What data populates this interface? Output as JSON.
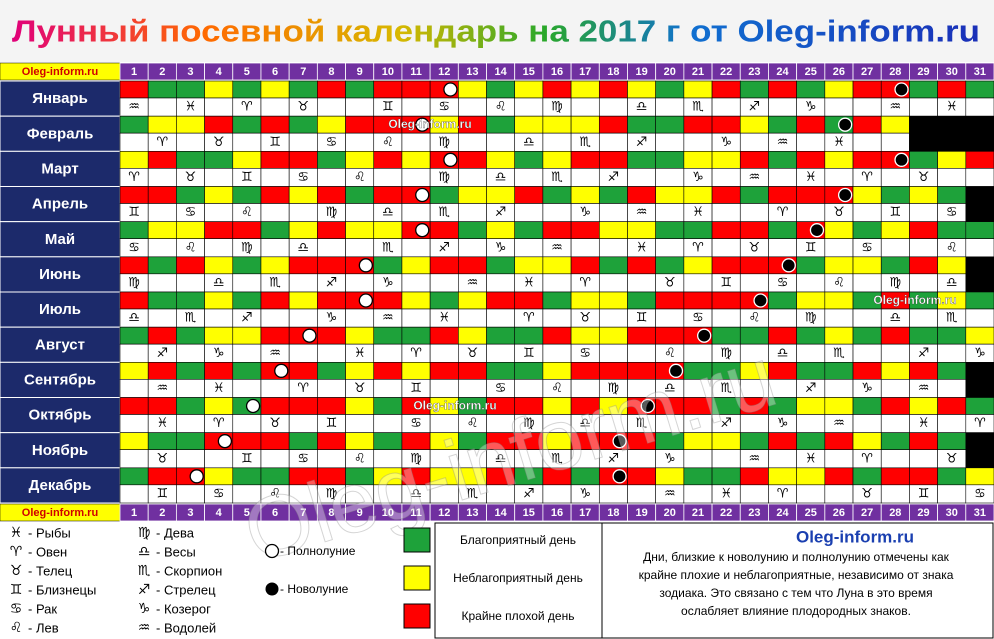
{
  "title": "Лунный посевной календарь на 2017 г от Oleg-inform.ru",
  "site_label": "Oleg-inform.ru",
  "days": [
    1,
    2,
    3,
    4,
    5,
    6,
    7,
    8,
    9,
    10,
    11,
    12,
    13,
    14,
    15,
    16,
    17,
    18,
    19,
    20,
    21,
    22,
    23,
    24,
    25,
    26,
    27,
    28,
    29,
    30,
    31
  ],
  "palette": {
    "G": "#1ea23a",
    "Y": "#ffff00",
    "R": "#ff0000",
    "K": "#000000"
  },
  "months": [
    {
      "name": "Январь",
      "colors": "RGGYGYGRGRRRYGYRYRYGYRGRGYRRGRG",
      "full_moon": 12,
      "new_moon": 28,
      "signs": [
        {
          "day": 1,
          "symbol": "♒"
        },
        {
          "day": 3,
          "symbol": "♓"
        },
        {
          "day": 5,
          "symbol": "♈"
        },
        {
          "day": 7,
          "symbol": "♉"
        },
        {
          "day": 10,
          "symbol": "♊"
        },
        {
          "day": 12,
          "symbol": "♋"
        },
        {
          "day": 14,
          "symbol": "♌"
        },
        {
          "day": 16,
          "symbol": "♍"
        },
        {
          "day": 19,
          "symbol": "♎"
        },
        {
          "day": 21,
          "symbol": "♏"
        },
        {
          "day": 23,
          "symbol": "♐"
        },
        {
          "day": 25,
          "symbol": "♑"
        },
        {
          "day": 28,
          "symbol": "♒"
        },
        {
          "day": 30,
          "symbol": "♓"
        }
      ]
    },
    {
      "name": "Февраль",
      "colors": "GYYRGRGYRRRYRGYYYRGGRRYGRGRYKKK",
      "full_moon": 11,
      "new_moon": 26,
      "signs": [
        {
          "day": 2,
          "symbol": "♈"
        },
        {
          "day": 4,
          "symbol": "♉"
        },
        {
          "day": 6,
          "symbol": "♊"
        },
        {
          "day": 8,
          "symbol": "♋"
        },
        {
          "day": 10,
          "symbol": "♌"
        },
        {
          "day": 12,
          "symbol": "♍"
        },
        {
          "day": 15,
          "symbol": "♎"
        },
        {
          "day": 17,
          "symbol": "♏"
        },
        {
          "day": 19,
          "symbol": "♐"
        },
        {
          "day": 22,
          "symbol": "♑"
        },
        {
          "day": 24,
          "symbol": "♒"
        },
        {
          "day": 26,
          "symbol": "♓"
        }
      ]
    },
    {
      "name": "Март",
      "colors": "YRGGYRRGYRYRRYGYRRGGYYRGRYRRGYR",
      "full_moon": 12,
      "new_moon": 28,
      "signs": [
        {
          "day": 1,
          "symbol": "♈"
        },
        {
          "day": 3,
          "symbol": "♉"
        },
        {
          "day": 5,
          "symbol": "♊"
        },
        {
          "day": 7,
          "symbol": "♋"
        },
        {
          "day": 9,
          "symbol": "♌"
        },
        {
          "day": 12,
          "symbol": "♍"
        },
        {
          "day": 14,
          "symbol": "♎"
        },
        {
          "day": 16,
          "symbol": "♏"
        },
        {
          "day": 18,
          "symbol": "♐"
        },
        {
          "day": 21,
          "symbol": "♑"
        },
        {
          "day": 23,
          "symbol": "♒"
        },
        {
          "day": 25,
          "symbol": "♓"
        },
        {
          "day": 27,
          "symbol": "♈"
        },
        {
          "day": 29,
          "symbol": "♉"
        }
      ]
    },
    {
      "name": "Апрель",
      "colors": "RRGYGRYRGRRGYYRGYGRYYRGRRRYGYGK",
      "full_moon": 11,
      "new_moon": 26,
      "signs": [
        {
          "day": 1,
          "symbol": "♊"
        },
        {
          "day": 3,
          "symbol": "♋"
        },
        {
          "day": 5,
          "symbol": "♌"
        },
        {
          "day": 8,
          "symbol": "♍"
        },
        {
          "day": 10,
          "symbol": "♎"
        },
        {
          "day": 12,
          "symbol": "♏"
        },
        {
          "day": 14,
          "symbol": "♐"
        },
        {
          "day": 17,
          "symbol": "♑"
        },
        {
          "day": 19,
          "symbol": "♒"
        },
        {
          "day": 21,
          "symbol": "♓"
        },
        {
          "day": 24,
          "symbol": "♈"
        },
        {
          "day": 26,
          "symbol": "♉"
        },
        {
          "day": 28,
          "symbol": "♊"
        },
        {
          "day": 30,
          "symbol": "♋"
        }
      ]
    },
    {
      "name": "Май",
      "colors": "GYYRRGYRYYRRGYGRRYYGGRRGRYGYRGG",
      "full_moon": 11,
      "new_moon": 25,
      "signs": [
        {
          "day": 1,
          "symbol": "♋"
        },
        {
          "day": 3,
          "symbol": "♌"
        },
        {
          "day": 5,
          "symbol": "♍"
        },
        {
          "day": 7,
          "symbol": "♎"
        },
        {
          "day": 10,
          "symbol": "♏"
        },
        {
          "day": 12,
          "symbol": "♐"
        },
        {
          "day": 14,
          "symbol": "♑"
        },
        {
          "day": 16,
          "symbol": "♒"
        },
        {
          "day": 19,
          "symbol": "♓"
        },
        {
          "day": 21,
          "symbol": "♈"
        },
        {
          "day": 23,
          "symbol": "♉"
        },
        {
          "day": 25,
          "symbol": "♊"
        },
        {
          "day": 27,
          "symbol": "♋"
        },
        {
          "day": 30,
          "symbol": "♌"
        }
      ]
    },
    {
      "name": "Июнь",
      "colors": "RGRYGYRRRGYRRGYYRGRGYRRRGYYGRYK",
      "full_moon": 9,
      "new_moon": 24,
      "signs": [
        {
          "day": 1,
          "symbol": "♍"
        },
        {
          "day": 4,
          "symbol": "♎"
        },
        {
          "day": 6,
          "symbol": "♏"
        },
        {
          "day": 8,
          "symbol": "♐"
        },
        {
          "day": 10,
          "symbol": "♑"
        },
        {
          "day": 13,
          "symbol": "♒"
        },
        {
          "day": 15,
          "symbol": "♓"
        },
        {
          "day": 17,
          "symbol": "♈"
        },
        {
          "day": 20,
          "symbol": "♉"
        },
        {
          "day": 22,
          "symbol": "♊"
        },
        {
          "day": 24,
          "symbol": "♋"
        },
        {
          "day": 26,
          "symbol": "♌"
        },
        {
          "day": 28,
          "symbol": "♍"
        },
        {
          "day": 30,
          "symbol": "♎"
        }
      ]
    },
    {
      "name": "Июль",
      "colors": "RGGYGRYRRRYGYRRGYYGRRRRGYYGRGYG",
      "full_moon": 9,
      "new_moon": 23,
      "signs": [
        {
          "day": 1,
          "symbol": "♎"
        },
        {
          "day": 3,
          "symbol": "♏"
        },
        {
          "day": 5,
          "symbol": "♐"
        },
        {
          "day": 8,
          "symbol": "♑"
        },
        {
          "day": 10,
          "symbol": "♒"
        },
        {
          "day": 12,
          "symbol": "♓"
        },
        {
          "day": 15,
          "symbol": "♈"
        },
        {
          "day": 17,
          "symbol": "♉"
        },
        {
          "day": 19,
          "symbol": "♊"
        },
        {
          "day": 21,
          "symbol": "♋"
        },
        {
          "day": 23,
          "symbol": "♌"
        },
        {
          "day": 25,
          "symbol": "♍"
        },
        {
          "day": 28,
          "symbol": "♎"
        },
        {
          "day": 30,
          "symbol": "♏"
        }
      ]
    },
    {
      "name": "Август",
      "colors": "GRGYYRRRYGGRYGGRYYRRRGGRGYGRGGY",
      "full_moon": 7,
      "new_moon": 21,
      "signs": [
        {
          "day": 2,
          "symbol": "♐"
        },
        {
          "day": 4,
          "symbol": "♑"
        },
        {
          "day": 6,
          "symbol": "♒"
        },
        {
          "day": 9,
          "symbol": "♓"
        },
        {
          "day": 11,
          "symbol": "♈"
        },
        {
          "day": 13,
          "symbol": "♉"
        },
        {
          "day": 15,
          "symbol": "♊"
        },
        {
          "day": 17,
          "symbol": "♋"
        },
        {
          "day": 20,
          "symbol": "♌"
        },
        {
          "day": 22,
          "symbol": "♍"
        },
        {
          "day": 24,
          "symbol": "♎"
        },
        {
          "day": 26,
          "symbol": "♏"
        },
        {
          "day": 29,
          "symbol": "♐"
        },
        {
          "day": 31,
          "symbol": "♑"
        }
      ]
    },
    {
      "name": "Сентябрь",
      "colors": "YRGRGRRGYRYRRGGYRRRRGGYRGGRYRGK",
      "full_moon": 6,
      "new_moon": 20,
      "signs": [
        {
          "day": 2,
          "symbol": "♒"
        },
        {
          "day": 4,
          "symbol": "♓"
        },
        {
          "day": 7,
          "symbol": "♈"
        },
        {
          "day": 9,
          "symbol": "♉"
        },
        {
          "day": 11,
          "symbol": "♊"
        },
        {
          "day": 14,
          "symbol": "♋"
        },
        {
          "day": 16,
          "symbol": "♌"
        },
        {
          "day": 18,
          "symbol": "♍"
        },
        {
          "day": 20,
          "symbol": "♎"
        },
        {
          "day": 22,
          "symbol": "♏"
        },
        {
          "day": 25,
          "symbol": "♐"
        },
        {
          "day": 27,
          "symbol": "♑"
        },
        {
          "day": 29,
          "symbol": "♒"
        }
      ]
    },
    {
      "name": "Октябрь",
      "colors": "RRGYGRRRYGRYGRRYRYRRRGRGYYGRYRG",
      "full_moon": 5,
      "new_moon": 19,
      "signs": [
        {
          "day": 2,
          "symbol": "♓"
        },
        {
          "day": 4,
          "symbol": "♈"
        },
        {
          "day": 6,
          "symbol": "♉"
        },
        {
          "day": 8,
          "symbol": "♊"
        },
        {
          "day": 11,
          "symbol": "♋"
        },
        {
          "day": 13,
          "symbol": "♌"
        },
        {
          "day": 15,
          "symbol": "♍"
        },
        {
          "day": 17,
          "symbol": "♎"
        },
        {
          "day": 19,
          "symbol": "♏"
        },
        {
          "day": 22,
          "symbol": "♐"
        },
        {
          "day": 24,
          "symbol": "♑"
        },
        {
          "day": 26,
          "symbol": "♒"
        },
        {
          "day": 29,
          "symbol": "♓"
        },
        {
          "day": 31,
          "symbol": "♈"
        }
      ]
    },
    {
      "name": "Ноябрь",
      "colors": "YGGRRRGRYGRYGRRYRRRGYYGRGRYGRGK",
      "full_moon": 4,
      "new_moon": 18,
      "signs": [
        {
          "day": 2,
          "symbol": "♉"
        },
        {
          "day": 5,
          "symbol": "♊"
        },
        {
          "day": 7,
          "symbol": "♋"
        },
        {
          "day": 9,
          "symbol": "♌"
        },
        {
          "day": 11,
          "symbol": "♍"
        },
        {
          "day": 14,
          "symbol": "♎"
        },
        {
          "day": 16,
          "symbol": "♏"
        },
        {
          "day": 18,
          "symbol": "♐"
        },
        {
          "day": 20,
          "symbol": "♑"
        },
        {
          "day": 23,
          "symbol": "♒"
        },
        {
          "day": 25,
          "symbol": "♓"
        },
        {
          "day": 27,
          "symbol": "♈"
        },
        {
          "day": 30,
          "symbol": "♉"
        }
      ]
    },
    {
      "name": "Декабрь",
      "colors": "GRRYGGRRGYRYYRGRGRRYGGRYYRGRRGY",
      "full_moon": 3,
      "new_moon": 18,
      "signs": [
        {
          "day": 2,
          "symbol": "♊"
        },
        {
          "day": 4,
          "symbol": "♋"
        },
        {
          "day": 6,
          "symbol": "♌"
        },
        {
          "day": 8,
          "symbol": "♍"
        },
        {
          "day": 11,
          "symbol": "♎"
        },
        {
          "day": 13,
          "symbol": "♏"
        },
        {
          "day": 15,
          "symbol": "♐"
        },
        {
          "day": 17,
          "symbol": "♑"
        },
        {
          "day": 20,
          "symbol": "♒"
        },
        {
          "day": 22,
          "symbol": "♓"
        },
        {
          "day": 24,
          "symbol": "♈"
        },
        {
          "day": 27,
          "symbol": "♉"
        },
        {
          "day": 29,
          "symbol": "♊"
        },
        {
          "day": 31,
          "symbol": "♋"
        }
      ]
    }
  ],
  "zodiac_legend": [
    {
      "symbol": "♓",
      "label": "- Рыбы"
    },
    {
      "symbol": "♈",
      "label": "- Овен"
    },
    {
      "symbol": "♉",
      "label": "- Телец"
    },
    {
      "symbol": "♊",
      "label": "- Близнецы"
    },
    {
      "symbol": "♋",
      "label": "- Рак"
    },
    {
      "symbol": "♌",
      "label": "- Лев"
    },
    {
      "symbol": "♍",
      "label": "- Дева"
    },
    {
      "symbol": "♎",
      "label": "- Весы"
    },
    {
      "symbol": "♏",
      "label": "- Скорпион"
    },
    {
      "symbol": "♐",
      "label": "- Стрелец"
    },
    {
      "symbol": "♑",
      "label": "- Козерог"
    },
    {
      "symbol": "♒",
      "label": "- Водолей"
    }
  ],
  "moon_legend": {
    "full": "- Полнолуние",
    "new": "- Новолуние"
  },
  "day_legend": [
    {
      "color": "G",
      "label": "Благоприятный день"
    },
    {
      "color": "Y",
      "label": "Неблагоприятный день"
    },
    {
      "color": "R",
      "label": "Крайне плохой день"
    }
  ],
  "note": {
    "site": "Oleg-inform.ru",
    "lines": [
      "Дни, близкие к новолунию и полнолунию отмечены как",
      "крайне плохие и неблагоприятные, независимо от знака",
      "зодиака. Это связано с тем что Луна в это время",
      "ослабляет влияние плодородных знаков."
    ]
  }
}
